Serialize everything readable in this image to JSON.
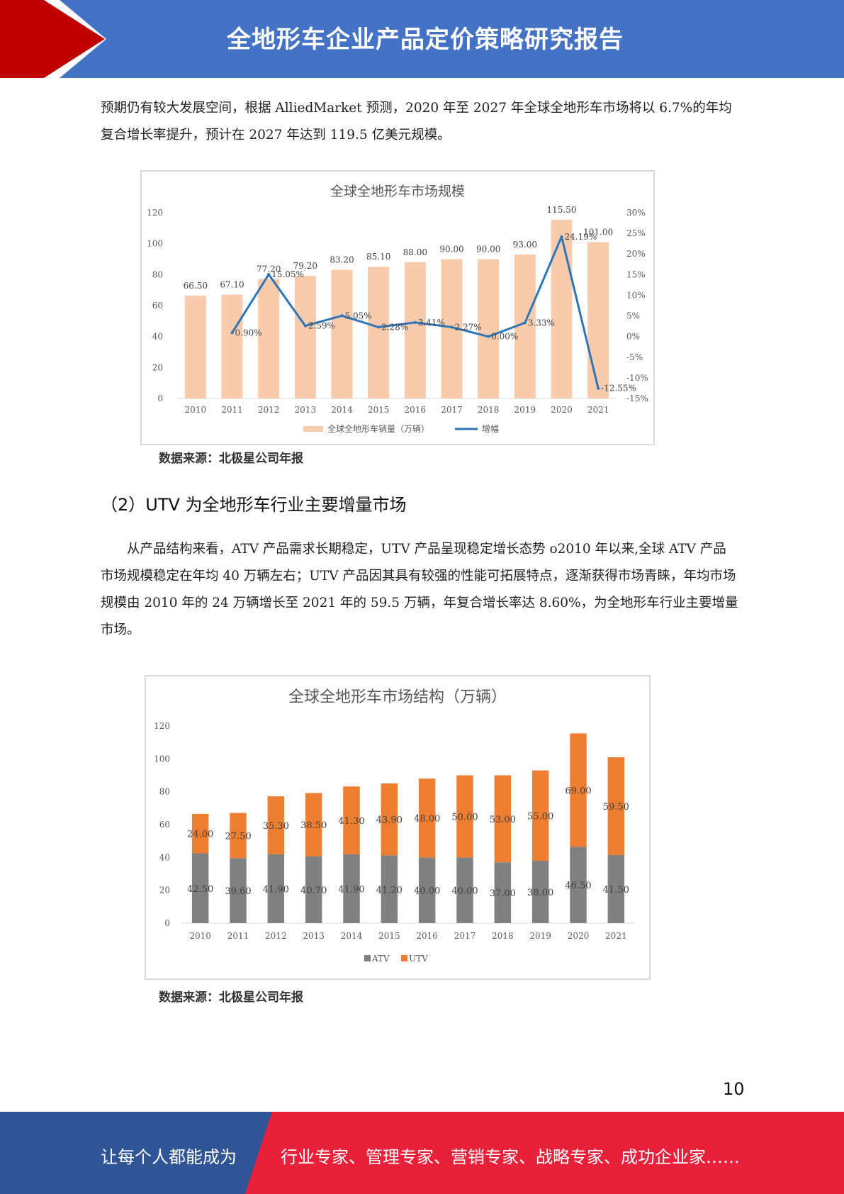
{
  "header": {
    "title": "全地形车企业产品定价策略研究报告",
    "colors": {
      "band": "#4472c4",
      "accent": "#c00000"
    }
  },
  "paragraph1": "预期仍有较大发展空间，根据 AlliedMarket 预测，2020 年至 2027 年全球全地形车市场将以 6.7%的年均复合增长率提升，预计在 2027 年达到 119.5 亿美元规模。",
  "source1": "数据来源：北极星公司年报",
  "section_heading": "（2）UTV 为全地形车行业主要增量市场",
  "paragraph2": "从产品结构来看，ATV 产品需求长期稳定，UTV 产品呈现稳定增长态势 o2010 年以来,全球 ATV 产品市场规模稳定在年均 40 万辆左右；UTV 产品因其具有较强的性能可拓展特点，逐渐获得市场青睐，年均市场规模由 2010 年的 24 万辆增长至 2021 年的 59.5 万辆，年复合增长率达 8.60%，为全地形车行业主要增量市场。",
  "source2": "数据来源：北极星公司年报",
  "page_number": "10",
  "footer": {
    "left_text": "让每个人都能成为",
    "right_text": "行业专家、管理专家、营销专家、战略专家、成功企业家……",
    "colors": {
      "left": "#2f5597",
      "right": "#e8203a"
    }
  },
  "chart_data": [
    {
      "type": "bar",
      "title": "全球全地形车市场规模",
      "categories": [
        "2010",
        "2011",
        "2012",
        "2013",
        "2014",
        "2015",
        "2016",
        "2017",
        "2018",
        "2019",
        "2020",
        "2021"
      ],
      "ylim": [
        0,
        120
      ],
      "yticks": [
        "0",
        "20",
        "40",
        "60",
        "80",
        "100",
        "120"
      ],
      "y2lim": [
        -15,
        30
      ],
      "y2ticks": [
        "-15%",
        "-10%",
        "-5%",
        "0%",
        "5%",
        "10%",
        "15%",
        "20%",
        "25%",
        "30%"
      ],
      "legend_position": "bottom",
      "series": [
        {
          "name": "全球全地形车销量（万辆）",
          "kind": "bar",
          "color": "#f8cbad",
          "values": [
            66.5,
            67.1,
            77.2,
            79.2,
            83.2,
            85.1,
            88.0,
            90.0,
            90.0,
            93.0,
            115.5,
            101.0
          ],
          "labels": [
            "66.50",
            "67.10",
            "77.20",
            "79.20",
            "83.20",
            "85.10",
            "88.00",
            "90.00",
            "90.00",
            "93.00",
            "115.50",
            "101.00"
          ]
        },
        {
          "name": "增幅",
          "kind": "line",
          "axis": "secondary",
          "color": "#2e75b6",
          "x": [
            "2011",
            "2012",
            "2013",
            "2014",
            "2015",
            "2016",
            "2017",
            "2018",
            "2019",
            "2020",
            "2021"
          ],
          "values": [
            0.9,
            15.05,
            2.59,
            5.05,
            2.28,
            3.41,
            2.27,
            0.0,
            3.33,
            24.19,
            -12.55
          ],
          "labels": [
            "0.90%",
            "15.05%",
            "2.59%",
            "5.05%",
            "2.28%",
            "3.41%",
            "2.27%",
            "0.00%",
            "3.33%",
            "24.19%",
            "-12.55%"
          ]
        }
      ]
    },
    {
      "type": "bar",
      "stacked": true,
      "title": "全球全地形车市场结构（万辆）",
      "categories": [
        "2010",
        "2011",
        "2012",
        "2013",
        "2014",
        "2015",
        "2016",
        "2017",
        "2018",
        "2019",
        "2020",
        "2021"
      ],
      "ylim": [
        0,
        120
      ],
      "yticks": [
        "0",
        "20",
        "40",
        "60",
        "80",
        "100",
        "120"
      ],
      "legend_position": "bottom",
      "series": [
        {
          "name": "ATV",
          "color": "#808080",
          "values": [
            42.5,
            39.6,
            41.9,
            40.7,
            41.9,
            41.2,
            40.0,
            40.0,
            37.0,
            38.0,
            46.5,
            41.5
          ],
          "labels": [
            "42.50",
            "39.60",
            "41.90",
            "40.70",
            "41.90",
            "41.20",
            "40.00",
            "40.00",
            "37.00",
            "38.00",
            "46.50",
            "41.50"
          ]
        },
        {
          "name": "UTV",
          "color": "#ed7d31",
          "values": [
            24.0,
            27.5,
            35.3,
            38.5,
            41.3,
            43.9,
            48.0,
            50.0,
            53.0,
            55.0,
            69.0,
            59.5
          ],
          "labels": [
            "24.00",
            "27.50",
            "35.30",
            "38.50",
            "41.30",
            "43.90",
            "48.00",
            "50.00",
            "53.00",
            "55.00",
            "69.00",
            "59.50"
          ]
        }
      ]
    }
  ]
}
